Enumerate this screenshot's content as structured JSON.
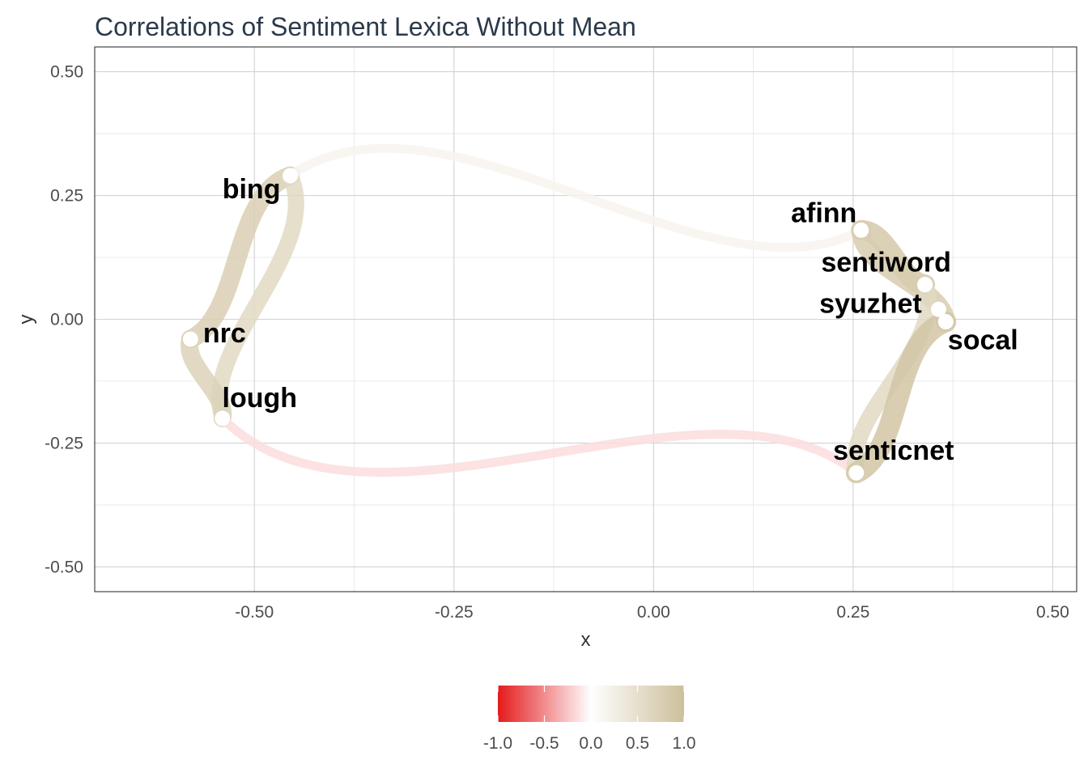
{
  "chart_data": {
    "type": "network",
    "title": "Correlations of Sentiment Lexica Without Mean",
    "xlabel": "x",
    "ylabel": "y",
    "xlim": [
      -0.7,
      0.53
    ],
    "ylim": [
      -0.55,
      0.55
    ],
    "x_ticks": [
      -0.5,
      -0.25,
      0.0,
      0.25,
      0.5
    ],
    "x_tick_labels": [
      "-0.50",
      "-0.25",
      "0.00",
      "0.25",
      "0.50"
    ],
    "y_ticks": [
      0.5,
      0.25,
      0.0,
      -0.25,
      -0.5
    ],
    "y_tick_labels": [
      "0.50",
      "0.25",
      "0.00",
      "-0.25",
      "-0.50"
    ],
    "grid": true,
    "nodes": [
      {
        "name": "bing",
        "x": -0.455,
        "y": 0.29
      },
      {
        "name": "nrc",
        "x": -0.58,
        "y": -0.04
      },
      {
        "name": "lough",
        "x": -0.54,
        "y": -0.2
      },
      {
        "name": "afinn",
        "x": 0.26,
        "y": 0.18
      },
      {
        "name": "sentiword",
        "x": 0.34,
        "y": 0.07
      },
      {
        "name": "syuzhet",
        "x": 0.357,
        "y": 0.02
      },
      {
        "name": "socal",
        "x": 0.366,
        "y": -0.005
      },
      {
        "name": "senticnet",
        "x": 0.254,
        "y": -0.31
      }
    ],
    "edges": [
      {
        "from": "bing",
        "to": "nrc",
        "correlation": 0.75
      },
      {
        "from": "bing",
        "to": "lough",
        "correlation": 0.6
      },
      {
        "from": "nrc",
        "to": "lough",
        "correlation": 0.7
      },
      {
        "from": "bing",
        "to": "afinn",
        "correlation": 0.15
      },
      {
        "from": "lough",
        "to": "senticnet",
        "correlation": -0.15
      },
      {
        "from": "afinn",
        "to": "sentiword",
        "correlation": 0.85
      },
      {
        "from": "afinn",
        "to": "socal",
        "correlation": 0.8
      },
      {
        "from": "sentiword",
        "to": "senticnet",
        "correlation": 0.6
      },
      {
        "from": "socal",
        "to": "senticnet",
        "correlation": 0.9
      }
    ],
    "legend": {
      "position": "bottom",
      "scale": "correlation",
      "low_color": "#e41a1c",
      "mid_color": "#ffffff",
      "high_color": "#cdbf9b",
      "ticks": [
        -1.0,
        -0.5,
        0.0,
        0.5,
        1.0
      ],
      "tick_labels": [
        "-1.0",
        "-0.5",
        "0.0",
        "0.5",
        "1.0"
      ]
    }
  }
}
